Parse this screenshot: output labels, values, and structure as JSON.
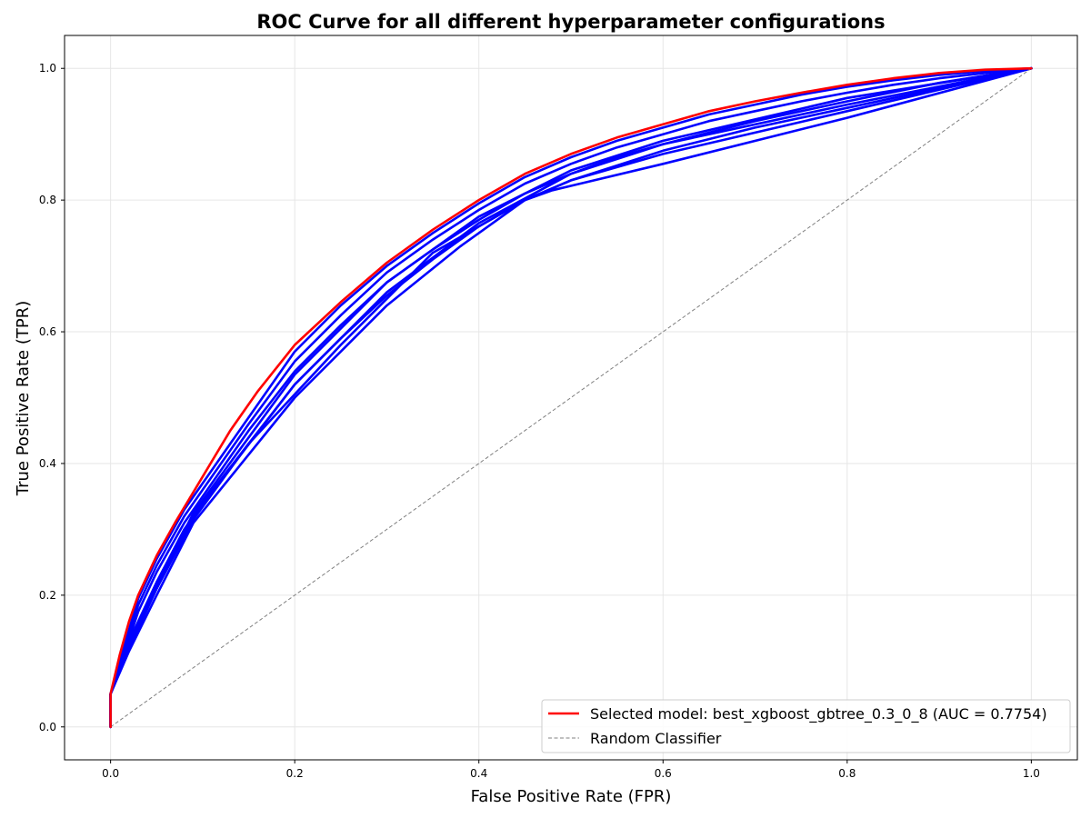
{
  "chart_data": {
    "type": "line",
    "title": "ROC Curve for all different hyperparameter configurations",
    "xlabel": "False Positive Rate (FPR)",
    "ylabel": "True Positive Rate (TPR)",
    "xlim": [
      -0.05,
      1.05
    ],
    "ylim": [
      -0.05,
      1.05
    ],
    "xticks": [
      0.0,
      0.2,
      0.4,
      0.6,
      0.8,
      1.0
    ],
    "yticks": [
      0.0,
      0.2,
      0.4,
      0.6,
      0.8,
      1.0
    ],
    "xtick_labels": [
      "0.0",
      "0.2",
      "0.4",
      "0.6",
      "0.8",
      "1.0"
    ],
    "ytick_labels": [
      "0.0",
      "0.2",
      "0.4",
      "0.6",
      "0.8",
      "1.0"
    ],
    "grid": true,
    "legend_position": "lower-right",
    "colors": {
      "selected": "#ff0000",
      "configs": "#0000ff",
      "random": "#808080"
    },
    "series": [
      {
        "name": "Selected model: best_xgboost_gbtree_0.3_0_8 (AUC = 0.7754)",
        "role": "selected",
        "x": [
          0,
          0,
          0.01,
          0.02,
          0.03,
          0.05,
          0.07,
          0.1,
          0.13,
          0.16,
          0.2,
          0.25,
          0.3,
          0.35,
          0.4,
          0.45,
          0.5,
          0.55,
          0.6,
          0.65,
          0.7,
          0.75,
          0.8,
          0.85,
          0.9,
          0.95,
          1.0
        ],
        "y": [
          0,
          0.05,
          0.11,
          0.16,
          0.2,
          0.26,
          0.31,
          0.38,
          0.45,
          0.51,
          0.58,
          0.645,
          0.705,
          0.755,
          0.8,
          0.84,
          0.87,
          0.895,
          0.915,
          0.935,
          0.95,
          0.963,
          0.975,
          0.985,
          0.993,
          0.998,
          1.0
        ]
      },
      {
        "name": "Random Classifier",
        "role": "random",
        "x": [
          0,
          1
        ],
        "y": [
          0,
          1
        ]
      }
    ],
    "config_curves": [
      {
        "x": [
          0,
          0,
          0.01,
          0.03,
          0.05,
          0.08,
          0.1,
          0.15,
          0.2,
          0.25,
          0.3,
          0.35,
          0.4,
          0.45,
          0.5,
          0.55,
          0.6,
          0.65,
          0.7,
          0.75,
          0.8,
          0.85,
          0.9,
          0.95,
          1.0
        ],
        "y": [
          0,
          0.05,
          0.1,
          0.195,
          0.255,
          0.33,
          0.37,
          0.47,
          0.57,
          0.64,
          0.7,
          0.75,
          0.795,
          0.835,
          0.865,
          0.89,
          0.91,
          0.93,
          0.945,
          0.96,
          0.972,
          0.982,
          0.99,
          0.996,
          1.0
        ]
      },
      {
        "x": [
          0,
          0,
          0.01,
          0.03,
          0.05,
          0.08,
          0.1,
          0.15,
          0.2,
          0.25,
          0.3,
          0.35,
          0.4,
          0.45,
          0.5,
          0.55,
          0.6,
          0.65,
          0.7,
          0.75,
          0.8,
          0.85,
          0.9,
          0.95,
          1.0
        ],
        "y": [
          0,
          0.05,
          0.095,
          0.185,
          0.245,
          0.32,
          0.36,
          0.46,
          0.555,
          0.625,
          0.69,
          0.74,
          0.785,
          0.825,
          0.855,
          0.88,
          0.9,
          0.92,
          0.935,
          0.95,
          0.963,
          0.975,
          0.985,
          0.993,
          1.0
        ]
      },
      {
        "x": [
          0,
          0,
          0.01,
          0.03,
          0.05,
          0.08,
          0.1,
          0.15,
          0.2,
          0.25,
          0.3,
          0.35,
          0.4,
          0.45,
          0.5,
          0.55,
          0.6,
          0.7,
          0.8,
          0.9,
          1.0
        ],
        "y": [
          0,
          0.05,
          0.09,
          0.175,
          0.235,
          0.31,
          0.35,
          0.45,
          0.54,
          0.61,
          0.675,
          0.725,
          0.77,
          0.81,
          0.84,
          0.865,
          0.885,
          0.92,
          0.95,
          0.978,
          1.0
        ]
      },
      {
        "x": [
          0,
          0,
          0.02,
          0.05,
          0.08,
          0.1,
          0.15,
          0.2,
          0.25,
          0.3,
          0.35,
          0.4,
          0.45,
          0.5,
          0.6,
          0.7,
          0.8,
          0.9,
          1.0
        ],
        "y": [
          0,
          0.05,
          0.13,
          0.22,
          0.3,
          0.34,
          0.43,
          0.52,
          0.59,
          0.655,
          0.71,
          0.76,
          0.8,
          0.83,
          0.875,
          0.91,
          0.94,
          0.97,
          1.0
        ]
      },
      {
        "x": [
          0,
          0,
          0.02,
          0.05,
          0.09,
          0.15,
          0.25,
          0.35,
          0.45,
          0.48,
          0.6,
          0.8,
          1.0
        ],
        "y": [
          0,
          0.05,
          0.12,
          0.21,
          0.315,
          0.43,
          0.58,
          0.72,
          0.8,
          0.815,
          0.855,
          0.925,
          1.0
        ]
      },
      {
        "x": [
          0,
          0,
          0.02,
          0.05,
          0.09,
          0.2,
          0.3,
          0.38,
          0.45,
          0.5,
          0.6,
          0.8,
          1.0
        ],
        "y": [
          0,
          0.05,
          0.115,
          0.2,
          0.31,
          0.5,
          0.64,
          0.73,
          0.8,
          0.83,
          0.87,
          0.935,
          1.0
        ]
      },
      {
        "x": [
          0,
          0,
          0.02,
          0.05,
          0.09,
          0.2,
          0.3,
          0.4,
          0.5,
          0.6,
          0.8,
          1.0
        ],
        "y": [
          0,
          0.05,
          0.12,
          0.21,
          0.32,
          0.52,
          0.66,
          0.765,
          0.84,
          0.885,
          0.945,
          1.0
        ]
      },
      {
        "x": [
          0,
          0,
          0.02,
          0.05,
          0.09,
          0.2,
          0.3,
          0.4,
          0.5,
          0.6,
          0.8,
          1.0
        ],
        "y": [
          0,
          0.05,
          0.125,
          0.215,
          0.325,
          0.535,
          0.675,
          0.775,
          0.845,
          0.89,
          0.955,
          1.0
        ]
      }
    ]
  }
}
